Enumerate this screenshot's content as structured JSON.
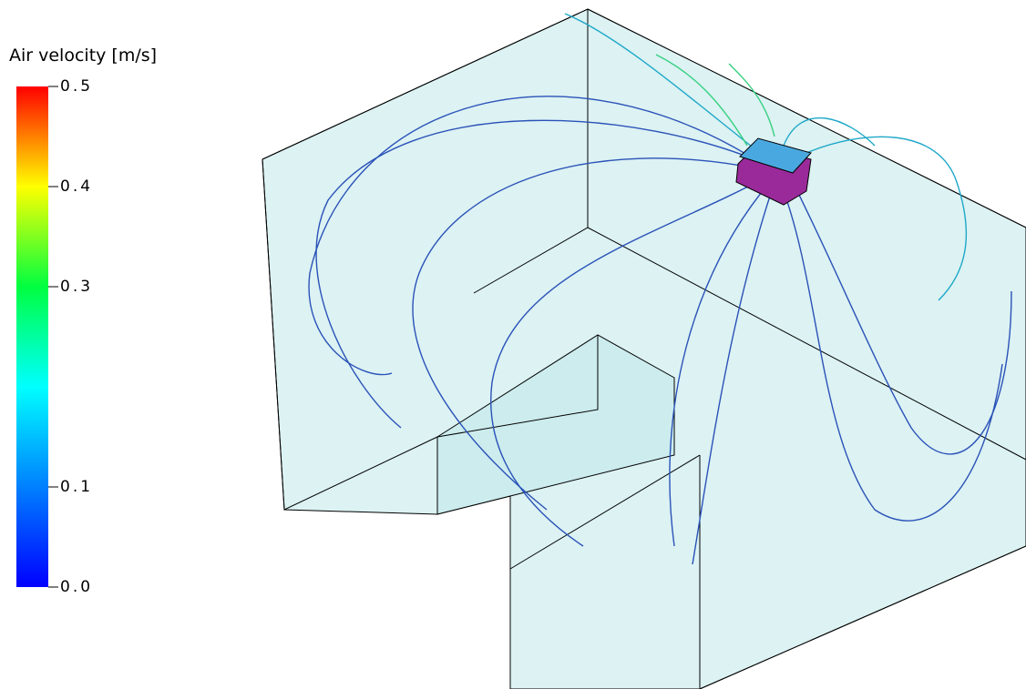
{
  "colorbar": {
    "title": "Air velocity [m/s]",
    "lim": [
      0,
      0.5
    ],
    "ticks": [
      0.5,
      0.4,
      0.3,
      0.1,
      {
        "value": 0,
        "label": "0.0"
      }
    ]
  }
}
